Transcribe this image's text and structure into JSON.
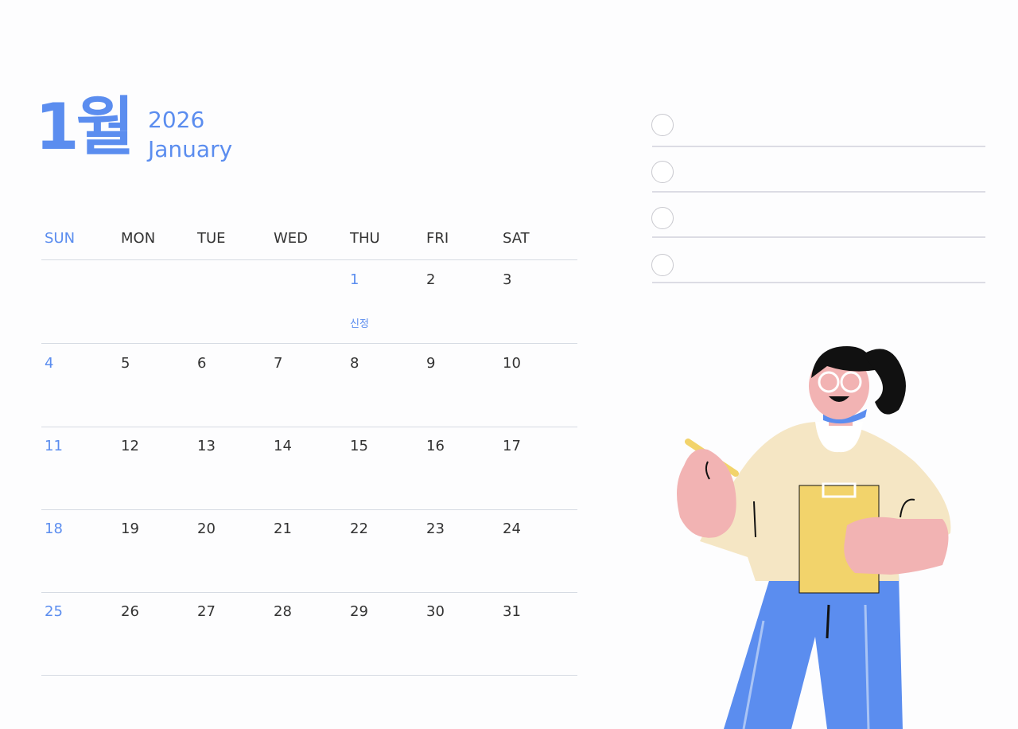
{
  "header": {
    "month_korean": "1월",
    "year": "2026",
    "month_english": "January"
  },
  "weekdays": [
    "SUN",
    "MON",
    "TUE",
    "WED",
    "THU",
    "FRI",
    "SAT"
  ],
  "weeks": [
    [
      "",
      "",
      "",
      "",
      "1",
      "2",
      "3"
    ],
    [
      "4",
      "5",
      "6",
      "7",
      "8",
      "9",
      "10"
    ],
    [
      "11",
      "12",
      "13",
      "14",
      "15",
      "16",
      "17"
    ],
    [
      "18",
      "19",
      "20",
      "21",
      "22",
      "23",
      "24"
    ],
    [
      "25",
      "26",
      "27",
      "28",
      "29",
      "30",
      "31"
    ]
  ],
  "holidays": {
    "jan1": "신정"
  },
  "checklist": {
    "items": 4
  },
  "colors": {
    "accent": "#5b8def",
    "text": "#333333",
    "line": "#d6dbe3"
  }
}
